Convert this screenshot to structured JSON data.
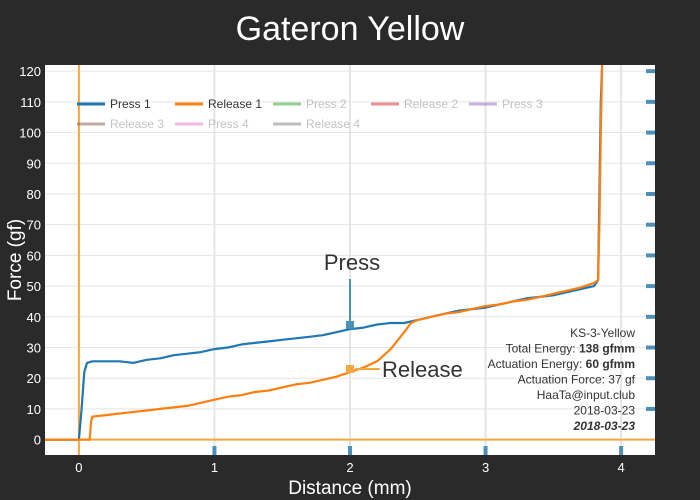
{
  "chart_data": {
    "type": "line",
    "title": "Gateron Yellow",
    "xlabel": "Distance (mm)",
    "ylabel": "Force (gf)",
    "xlim": [
      -0.25,
      4.25
    ],
    "ylim": [
      -5,
      122
    ],
    "xticks": [
      0,
      1,
      2,
      3,
      4
    ],
    "yticks": [
      0,
      10,
      20,
      30,
      40,
      50,
      60,
      70,
      80,
      90,
      100,
      110,
      120
    ],
    "grid": true,
    "legend_position": "top-left",
    "legend": [
      {
        "name": "Press 1",
        "color": "#1f77b4",
        "active": true
      },
      {
        "name": "Release 1",
        "color": "#ff7f0e",
        "active": true
      },
      {
        "name": "Press 2",
        "color": "#2ca02c",
        "active": false
      },
      {
        "name": "Release 2",
        "color": "#d62728",
        "active": false
      },
      {
        "name": "Press 3",
        "color": "#9467bd",
        "active": false
      },
      {
        "name": "Release 3",
        "color": "#8c564b",
        "active": false
      },
      {
        "name": "Press 4",
        "color": "#e377c2",
        "active": false
      },
      {
        "name": "Release 4",
        "color": "#7f7f7f",
        "active": false
      }
    ],
    "series": [
      {
        "name": "Press 1",
        "color": "#1f77b4",
        "x": [
          -0.25,
          0.0,
          0.02,
          0.04,
          0.06,
          0.1,
          0.2,
          0.3,
          0.4,
          0.5,
          0.6,
          0.7,
          0.8,
          0.9,
          1.0,
          1.1,
          1.2,
          1.3,
          1.4,
          1.5,
          1.6,
          1.7,
          1.8,
          1.9,
          2.0,
          2.1,
          2.2,
          2.3,
          2.4,
          2.5,
          2.6,
          2.7,
          2.8,
          2.9,
          3.0,
          3.1,
          3.2,
          3.3,
          3.4,
          3.5,
          3.6,
          3.7,
          3.8,
          3.83,
          3.84,
          3.85,
          3.86
        ],
        "y": [
          0,
          0,
          10,
          22,
          25,
          25.5,
          25.5,
          25.5,
          25,
          26,
          26.5,
          27.5,
          28,
          28.5,
          29.5,
          30,
          31,
          31.5,
          32,
          32.5,
          33,
          33.5,
          34,
          35,
          36,
          36.5,
          37.5,
          38,
          38,
          39,
          40,
          41,
          42,
          42.5,
          43,
          44,
          45,
          46,
          46.5,
          47,
          48,
          49,
          50,
          52,
          80,
          110,
          122
        ]
      },
      {
        "name": "Release 1",
        "color": "#ff7f0e",
        "x": [
          3.86,
          3.85,
          3.84,
          3.83,
          3.8,
          3.7,
          3.6,
          3.5,
          3.4,
          3.3,
          3.2,
          3.1,
          3.0,
          2.9,
          2.8,
          2.7,
          2.6,
          2.5,
          2.45,
          2.4,
          2.3,
          2.2,
          2.1,
          2.0,
          1.9,
          1.8,
          1.7,
          1.6,
          1.5,
          1.4,
          1.3,
          1.2,
          1.1,
          1.0,
          0.9,
          0.8,
          0.7,
          0.6,
          0.5,
          0.4,
          0.3,
          0.2,
          0.1,
          0.09,
          0.085,
          0.08,
          0.0,
          -0.25
        ],
        "y": [
          122,
          100,
          70,
          52,
          51,
          49.5,
          48.5,
          47.5,
          46.5,
          45.5,
          45,
          44,
          43.5,
          42.5,
          41.5,
          41,
          40,
          39,
          38,
          35,
          29.5,
          25.5,
          23.5,
          22,
          20.5,
          19.5,
          18.5,
          18,
          17,
          16,
          15.5,
          14.5,
          14,
          13,
          12,
          11,
          10.5,
          10,
          9.5,
          9,
          8.5,
          8,
          7.5,
          6,
          3,
          0,
          0,
          0
        ]
      }
    ],
    "annotations": [
      {
        "text": "Press",
        "x": 2.0,
        "y": 37
      },
      {
        "text": "Release",
        "x": 2.0,
        "y": 23
      }
    ],
    "info_box": {
      "lines": [
        {
          "label": "KS-3-Yellow",
          "value": ""
        },
        {
          "label": "Total Energy: ",
          "value": "138 gfmm"
        },
        {
          "label": "Actuation Energy: ",
          "value": "60 gfmm"
        },
        {
          "label": "Actuation Force: 37 gf",
          "value": ""
        },
        {
          "label": "HaaTa@input.club",
          "value": ""
        },
        {
          "label": "2018-03-23",
          "value": ""
        },
        {
          "label": "",
          "value": "2018-03-23"
        }
      ]
    },
    "colors": {
      "background": "#2a2a2a",
      "plot_background": "#ffffff",
      "grid": "#e5e5e5",
      "axis_text": "#ffffff",
      "accent_tick": "#4a90b8",
      "zero_line": "#f5a742"
    }
  }
}
